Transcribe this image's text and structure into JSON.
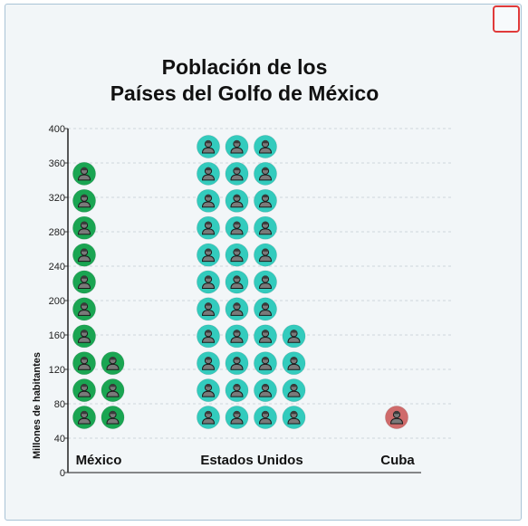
{
  "window": {
    "close_icon": "square-outline-icon",
    "close_color": "#e03a3a"
  },
  "chart_data": {
    "type": "pictograph",
    "title_line1": "Población de los",
    "title_line2": "Países del Golfo de México",
    "ylabel": "Millones de habitantes",
    "ylim": [
      0,
      400
    ],
    "yticks": [
      0,
      40,
      80,
      120,
      160,
      200,
      240,
      280,
      320,
      360,
      400
    ],
    "unit_per_icon": 30,
    "grid": true,
    "icon": "person-icon",
    "categories": [
      "México",
      "Estados Unidos",
      "Cuba"
    ],
    "icons": [
      {
        "category": "México",
        "columns": [
          10,
          3
        ],
        "color": "#1aa552"
      },
      {
        "category": "Estados Unidos",
        "columns": [
          11,
          11,
          11,
          4
        ],
        "color": "#33cbbd"
      },
      {
        "category": "Cuba",
        "columns": [
          1
        ],
        "color": "#cf6b6b"
      }
    ]
  }
}
